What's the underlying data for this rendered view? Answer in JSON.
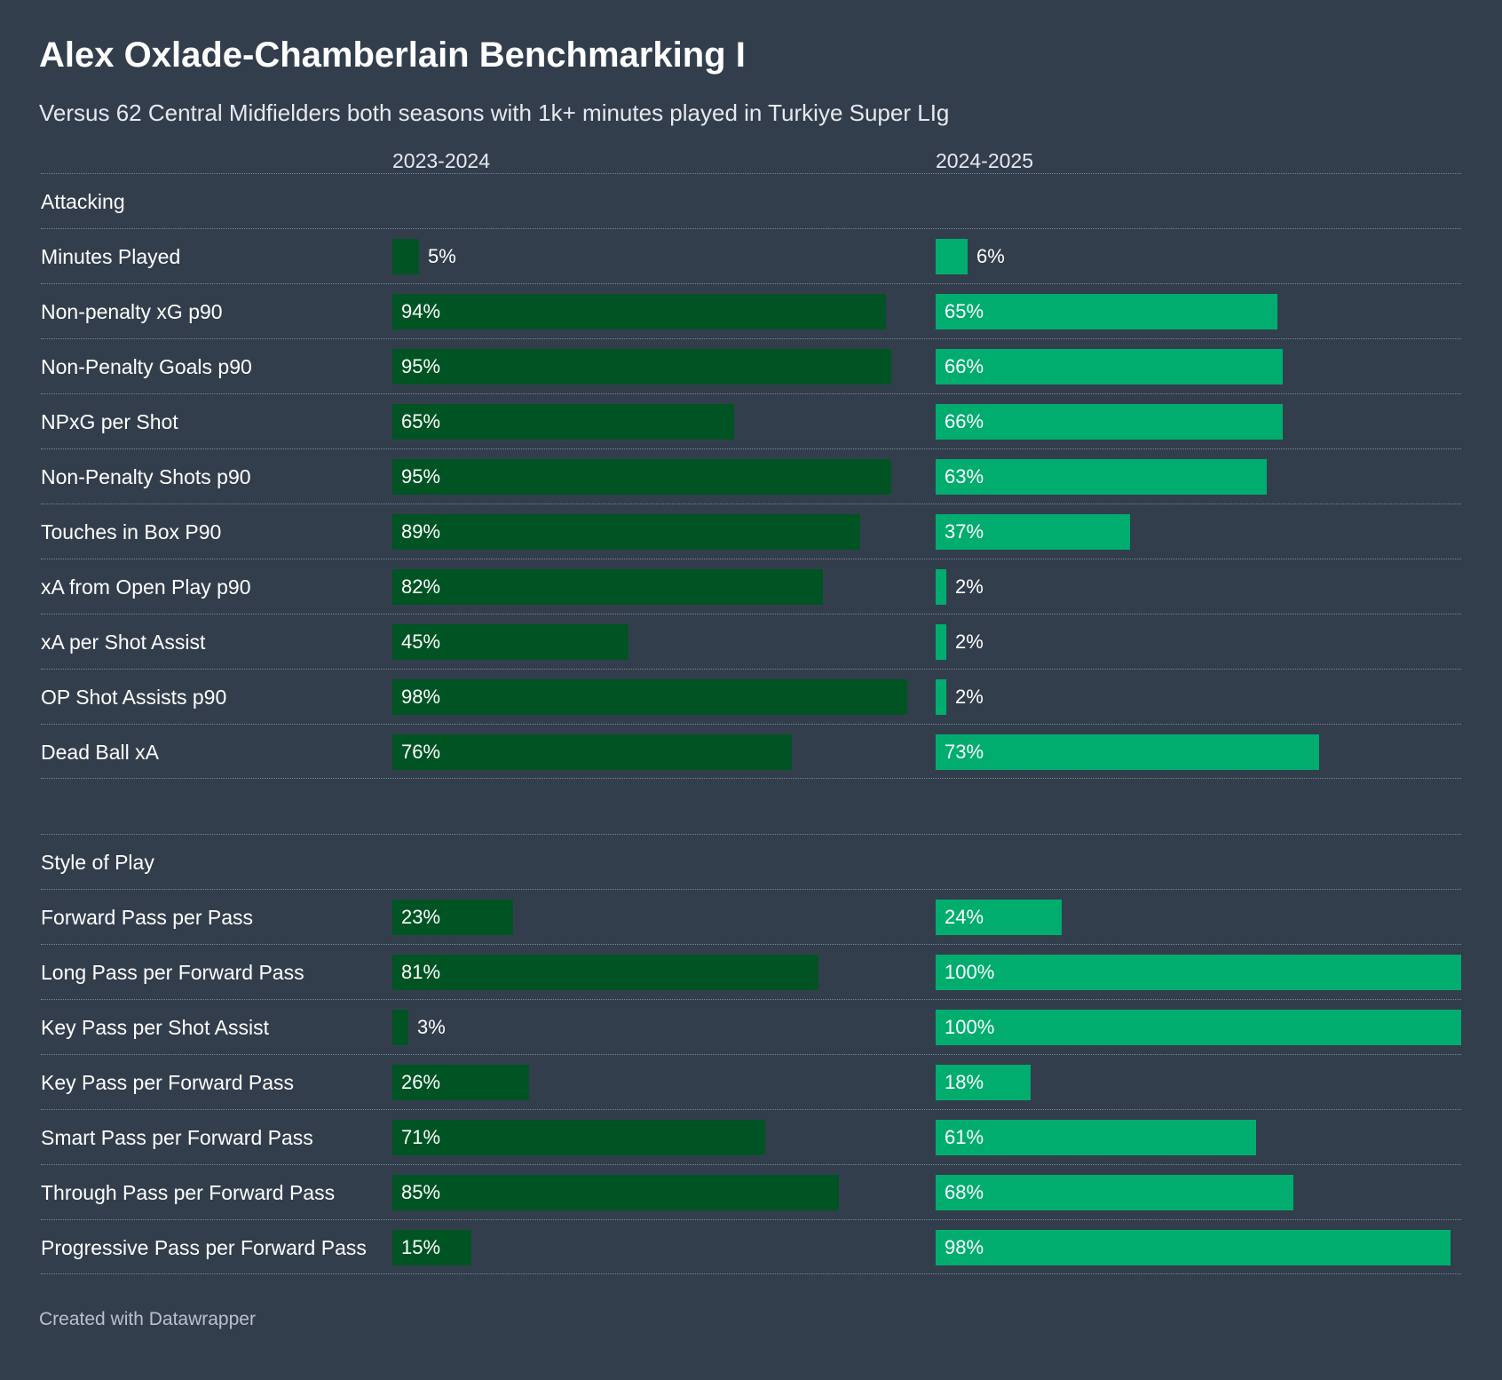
{
  "title": "Alex Oxlade-Chamberlain Benchmarking I",
  "subtitle": "Versus 62 Central Midfielders both seasons with 1k+ minutes played in Turkiye Super LIg",
  "footer": "Created with Datawrapper",
  "colors": {
    "background": "#333e4d",
    "season_2023_2024": "#005423",
    "season_2024_2025": "#00ad6e"
  },
  "chart_data": {
    "type": "bar",
    "orientation": "horizontal",
    "unit": "%",
    "xlim": [
      0,
      100
    ],
    "seasons": [
      "2023-2024",
      "2024-2025"
    ],
    "sections": [
      {
        "name": "Attacking",
        "rows": [
          {
            "label": "Minutes Played",
            "values": [
              5,
              6
            ]
          },
          {
            "label": "Non-penalty xG p90",
            "values": [
              94,
              65
            ]
          },
          {
            "label": "Non-Penalty Goals p90",
            "values": [
              95,
              66
            ]
          },
          {
            "label": "NPxG per Shot",
            "values": [
              65,
              66
            ]
          },
          {
            "label": "Non-Penalty Shots p90",
            "values": [
              95,
              63
            ]
          },
          {
            "label": "Touches in Box P90",
            "values": [
              89,
              37
            ]
          },
          {
            "label": "xA from Open Play p90",
            "values": [
              82,
              2
            ]
          },
          {
            "label": "xA per Shot Assist",
            "values": [
              45,
              2
            ]
          },
          {
            "label": "OP Shot Assists p90",
            "values": [
              98,
              2
            ]
          },
          {
            "label": "Dead Ball xA",
            "values": [
              76,
              73
            ]
          }
        ]
      },
      {
        "name": "Style of Play",
        "rows": [
          {
            "label": "Forward Pass per Pass",
            "values": [
              23,
              24
            ]
          },
          {
            "label": "Long Pass per Forward Pass",
            "values": [
              81,
              100
            ]
          },
          {
            "label": "Key Pass per Shot Assist",
            "values": [
              3,
              100
            ]
          },
          {
            "label": "Key Pass per Forward Pass",
            "values": [
              26,
              18
            ]
          },
          {
            "label": "Smart Pass per Forward Pass",
            "values": [
              71,
              61
            ]
          },
          {
            "label": "Through Pass per Forward Pass",
            "values": [
              85,
              68
            ]
          },
          {
            "label": "Progressive Pass per Forward Pass",
            "values": [
              15,
              98
            ]
          }
        ]
      }
    ]
  }
}
